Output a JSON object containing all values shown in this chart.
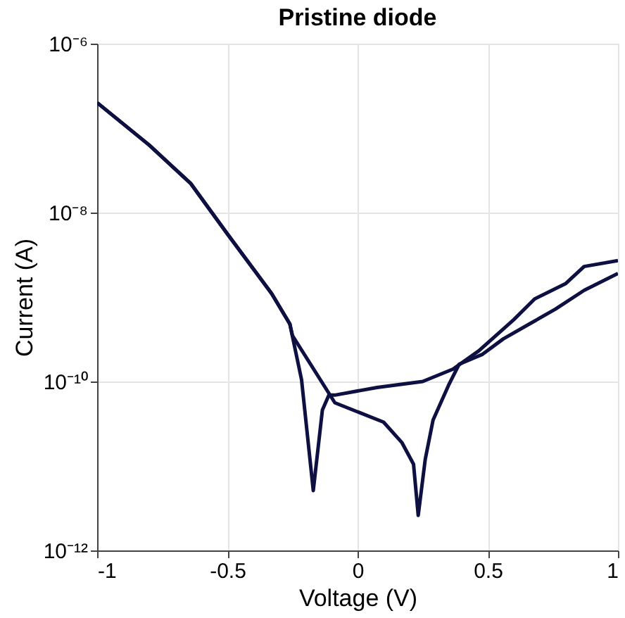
{
  "chart_data": {
    "type": "line",
    "title": "Pristine diode",
    "xlabel": "Voltage (V)",
    "ylabel": "Current (A)",
    "log": "y",
    "grid": true,
    "legend": false,
    "line_style": "solid",
    "marker": "none",
    "xlim": [
      -1,
      1
    ],
    "xticks": [
      -1,
      -0.5,
      0,
      0.5,
      1
    ],
    "ylim": [
      1e-12,
      1e-06
    ],
    "yticks": [
      {
        "value": 1e-12,
        "label": "10⁻¹²"
      },
      {
        "value": 1e-10,
        "label": "10⁻¹⁰"
      },
      {
        "value": 1e-08,
        "label": "10⁻⁸"
      },
      {
        "value": 1e-06,
        "label": "10⁻⁶"
      }
    ],
    "series": [
      {
        "color": "#0d1040",
        "x": [
          -1,
          -0.8,
          -0.64,
          -0.5,
          -0.33,
          -0.26,
          -0.215,
          -0.17,
          -0.135,
          -0.11,
          -0.087,
          0.075,
          0.25,
          0.366,
          0.465,
          0.6,
          0.68,
          0.8,
          0.87,
          1.0
        ],
        "values": [
          2e-07,
          6.3e-08,
          2.2e-08,
          5.6e-09,
          1.1e-09,
          4.8e-10,
          1.05e-10,
          5.1e-12,
          4.6e-11,
          6.9e-11,
          6.9e-11,
          8.5e-11,
          1e-10,
          1.4e-10,
          2.3e-10,
          5.4e-10,
          9.5e-10,
          1.45e-09,
          2.3e-09,
          2.7e-09
        ]
      },
      {
        "color": "#0d1040",
        "x": [
          -1,
          -0.8,
          -0.64,
          -0.5,
          -0.33,
          -0.26,
          -0.25,
          -0.087,
          0.1,
          0.17,
          0.215,
          0.233,
          0.26,
          0.29,
          0.35,
          0.39,
          0.48,
          0.56,
          0.66,
          0.76,
          0.87,
          1.0
        ],
        "values": [
          2e-07,
          6.3e-08,
          2.2e-08,
          5.6e-09,
          1.1e-09,
          4.8e-10,
          3.5e-10,
          5.6e-11,
          3.3e-11,
          1.9e-11,
          1.05e-11,
          2.6e-12,
          1.2e-11,
          3.5e-11,
          9.1e-11,
          1.6e-10,
          2.1e-10,
          3.2e-10,
          4.8e-10,
          7.2e-10,
          1.2e-09,
          1.9e-09
        ]
      }
    ]
  }
}
